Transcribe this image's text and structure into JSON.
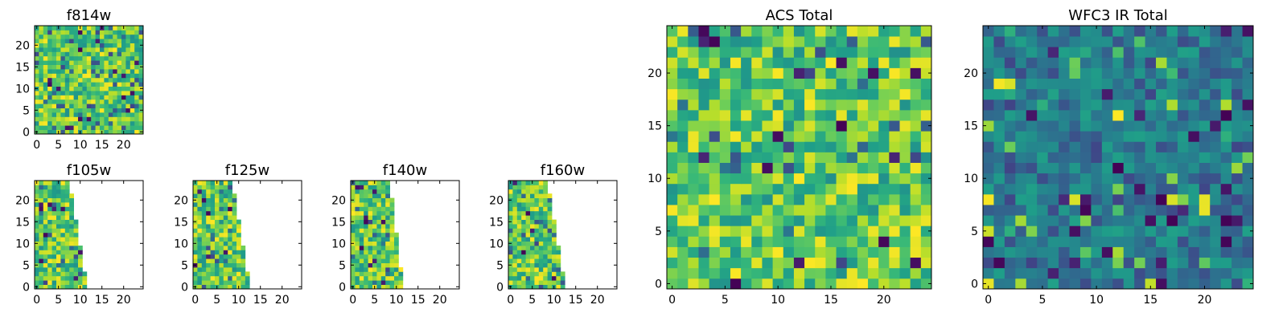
{
  "chart_data": [
    {
      "type": "heatmap",
      "title": "f814w",
      "grid_size": [
        25,
        25
      ],
      "mask": "full",
      "colormap": "viridis",
      "xticks": [
        "0",
        "5",
        "10",
        "15",
        "20"
      ],
      "yticks": [
        "0",
        "5",
        "10",
        "15",
        "20"
      ],
      "xlim": [
        -0.5,
        24.5
      ],
      "ylim": [
        -0.5,
        24.5
      ]
    },
    {
      "type": "heatmap",
      "title": "f105w",
      "grid_size": [
        25,
        25
      ],
      "mask": "wedge",
      "mask_columns": {
        "top": 8,
        "bottom": 12
      },
      "colormap": "viridis",
      "xticks": [
        "0",
        "5",
        "10",
        "15",
        "20"
      ],
      "yticks": [
        "0",
        "5",
        "10",
        "15",
        "20"
      ],
      "xlim": [
        -0.5,
        24.5
      ],
      "ylim": [
        -0.5,
        24.5
      ]
    },
    {
      "type": "heatmap",
      "title": "f125w",
      "grid_size": [
        25,
        25
      ],
      "mask": "wedge",
      "mask_columns": {
        "top": 9,
        "bottom": 13
      },
      "colormap": "viridis",
      "xticks": [
        "0",
        "5",
        "10",
        "15",
        "20"
      ],
      "yticks": [
        "0",
        "5",
        "10",
        "15",
        "20"
      ],
      "xlim": [
        -0.5,
        24.5
      ],
      "ylim": [
        -0.5,
        24.5
      ]
    },
    {
      "type": "heatmap",
      "title": "f140w",
      "grid_size": [
        25,
        25
      ],
      "mask": "wedge",
      "mask_columns": {
        "top": 9,
        "bottom": 12
      },
      "colormap": "viridis",
      "xticks": [
        "0",
        "5",
        "10",
        "15",
        "20"
      ],
      "yticks": [
        "0",
        "5",
        "10",
        "15",
        "20"
      ],
      "xlim": [
        -0.5,
        24.5
      ],
      "ylim": [
        -0.5,
        24.5
      ]
    },
    {
      "type": "heatmap",
      "title": "f160w",
      "grid_size": [
        25,
        25
      ],
      "mask": "wedge",
      "mask_columns": {
        "top": 9,
        "bottom": 13
      },
      "colormap": "viridis",
      "xticks": [
        "0",
        "5",
        "10",
        "15",
        "20"
      ],
      "yticks": [
        "0",
        "5",
        "10",
        "15",
        "20"
      ],
      "xlim": [
        -0.5,
        24.5
      ],
      "ylim": [
        -0.5,
        24.5
      ]
    },
    {
      "type": "heatmap",
      "title": "ACS Total",
      "grid_size": [
        25,
        25
      ],
      "mask": "full",
      "colormap": "viridis",
      "xticks": [
        "0",
        "5",
        "10",
        "15",
        "20"
      ],
      "yticks": [
        "0",
        "5",
        "10",
        "15",
        "20"
      ],
      "xlim": [
        -0.5,
        24.5
      ],
      "ylim": [
        -0.5,
        24.5
      ]
    },
    {
      "type": "heatmap",
      "title": "WFC3 IR Total",
      "grid_size": [
        25,
        25
      ],
      "mask": "full",
      "colormap": "viridis",
      "xticks": [
        "0",
        "5",
        "10",
        "15",
        "20"
      ],
      "yticks": [
        "0",
        "5",
        "10",
        "15",
        "20"
      ],
      "xlim": [
        -0.5,
        24.5
      ],
      "ylim": [
        -0.5,
        24.5
      ]
    }
  ]
}
